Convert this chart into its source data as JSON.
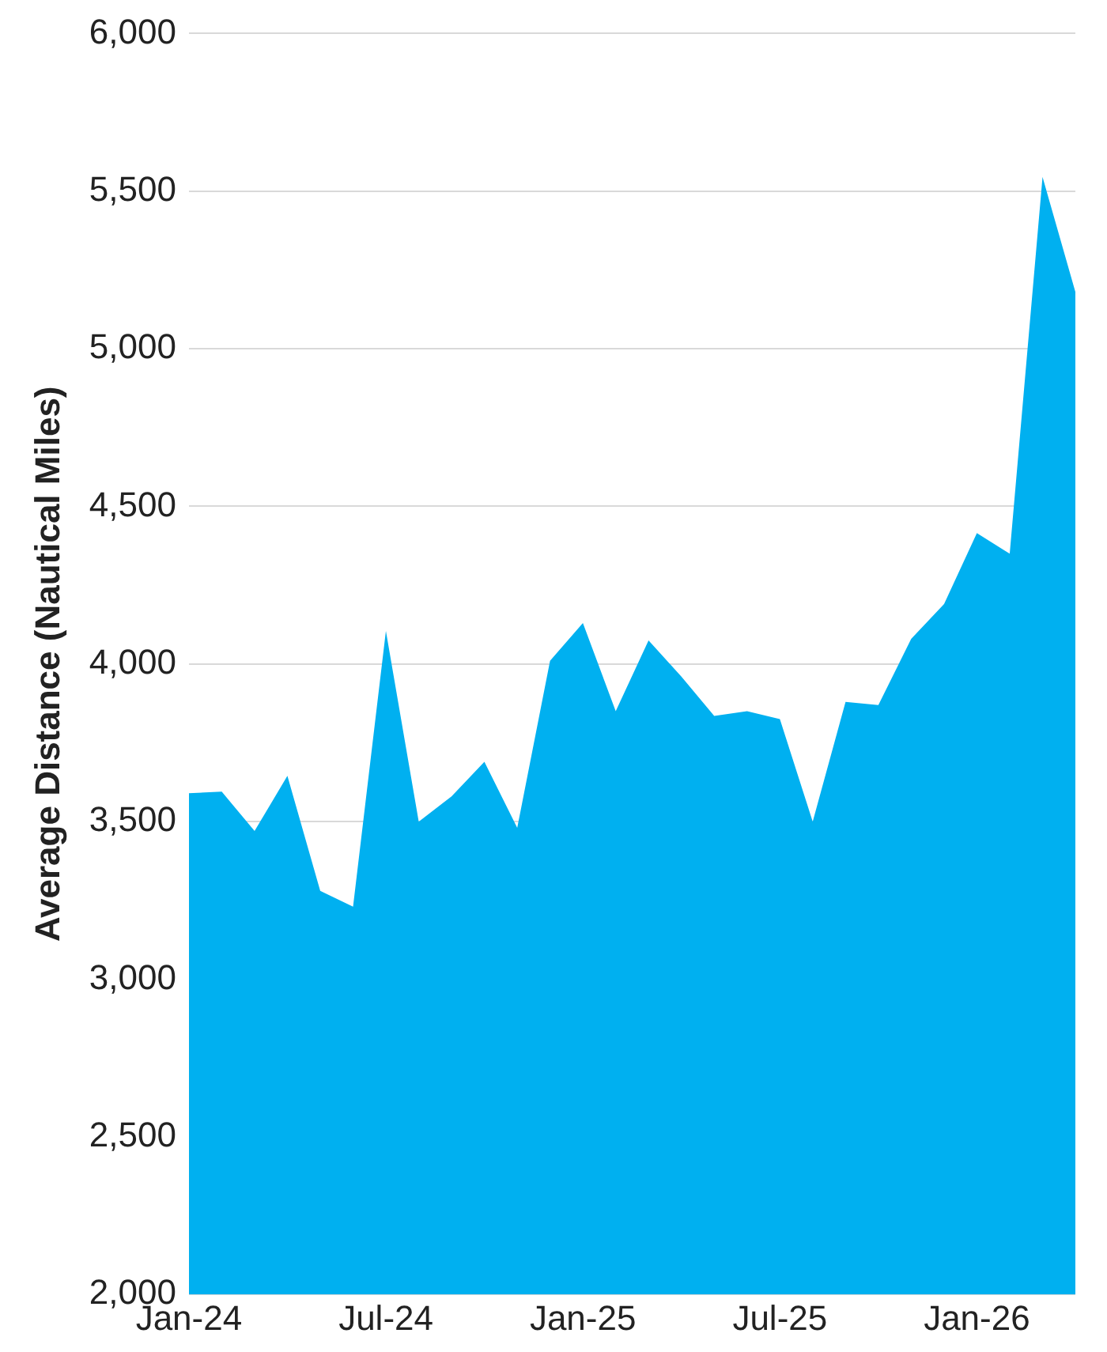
{
  "chart_data": {
    "type": "area",
    "ylabel": "Average Distance (Nautical Miles)",
    "x": [
      "2024-01",
      "2024-02",
      "2024-03",
      "2024-04",
      "2024-05",
      "2024-06",
      "2024-07",
      "2024-08",
      "2024-09",
      "2024-10",
      "2024-11",
      "2024-12",
      "2025-01",
      "2025-02",
      "2025-03",
      "2025-04",
      "2025-05",
      "2025-06",
      "2025-07",
      "2025-08",
      "2025-09",
      "2025-10",
      "2025-11",
      "2025-12",
      "2026-01",
      "2026-02",
      "2026-03",
      "2026-04"
    ],
    "series": [
      {
        "color": "#00b0f0",
        "values": [
          3590,
          3595,
          3470,
          3645,
          3280,
          3230,
          4105,
          3500,
          3580,
          3690,
          3480,
          4010,
          4130,
          3850,
          4075,
          3960,
          3835,
          3850,
          3825,
          3500,
          3880,
          3870,
          4080,
          4190,
          4415,
          4350,
          5545,
          5180
        ]
      }
    ],
    "xlim": [
      "2024-01",
      "2026-04"
    ],
    "xticks": [
      {
        "value": "2024-01",
        "label": "Jan-24"
      },
      {
        "value": "2024-07",
        "label": "Jul-24"
      },
      {
        "value": "2025-01",
        "label": "Jan-25"
      },
      {
        "value": "2025-07",
        "label": "Jul-25"
      },
      {
        "value": "2026-01",
        "label": "Jan-26"
      }
    ],
    "ylim": [
      2000,
      6000
    ],
    "yticks": [
      {
        "value": 2000,
        "label": "2,000"
      },
      {
        "value": 2500,
        "label": "2,500"
      },
      {
        "value": 3000,
        "label": "3,000"
      },
      {
        "value": 3500,
        "label": "3,500"
      },
      {
        "value": 4000,
        "label": "4,000"
      },
      {
        "value": 4500,
        "label": "4,500"
      },
      {
        "value": 5000,
        "label": "5,000"
      },
      {
        "value": 5500,
        "label": "5,500"
      },
      {
        "value": 6000,
        "label": "6,000"
      }
    ],
    "grid": "y",
    "legend": false,
    "marker": "none"
  }
}
